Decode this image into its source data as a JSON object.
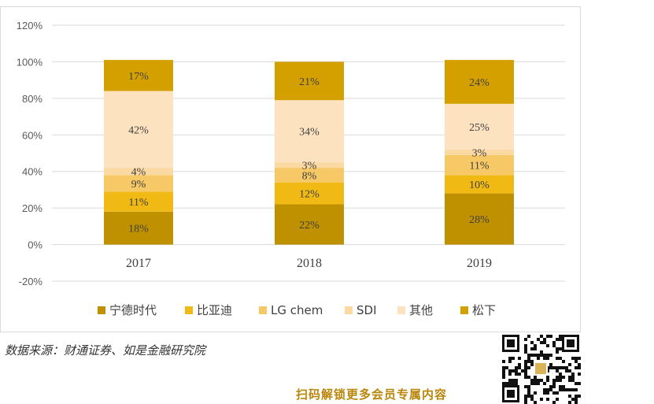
{
  "chart_data": {
    "type": "bar",
    "stacked": true,
    "title": "",
    "xlabel": "",
    "ylabel": "",
    "categories": [
      "2017",
      "2018",
      "2019"
    ],
    "ylim": [
      -0.2,
      1.2
    ],
    "yticks": [
      "120%",
      "100%",
      "80%",
      "60%",
      "40%",
      "20%",
      "0%",
      "-20%"
    ],
    "ytick_values": [
      1.2,
      1.0,
      0.8,
      0.6,
      0.4,
      0.2,
      0.0,
      -0.2
    ],
    "grid": true,
    "legend_position": "bottom",
    "series": [
      {
        "name": "宁德时代",
        "values": [
          0.18,
          0.22,
          0.28
        ],
        "labels": [
          "18%",
          "22%",
          "28%"
        ],
        "color": "#bf9000"
      },
      {
        "name": "比亚迪",
        "values": [
          0.11,
          0.12,
          0.1
        ],
        "labels": [
          "11%",
          "12%",
          "10%"
        ],
        "color": "#f0b913"
      },
      {
        "name": "LG chem",
        "values": [
          0.09,
          0.08,
          0.11
        ],
        "labels": [
          "9%",
          "8%",
          "11%"
        ],
        "color": "#f7c866"
      },
      {
        "name": "SDI",
        "values": [
          0.04,
          0.03,
          0.03
        ],
        "labels": [
          "4%",
          "3%",
          "3%"
        ],
        "color": "#fbd9a2"
      },
      {
        "name": "其他",
        "values": [
          0.42,
          0.34,
          0.25
        ],
        "labels": [
          "42%",
          "34%",
          "25%"
        ],
        "color": "#fde2c0"
      },
      {
        "name": "松下",
        "values": [
          0.17,
          0.21,
          0.24
        ],
        "labels": [
          "17%",
          "21%",
          "24%"
        ],
        "color": "#d4a000"
      }
    ]
  },
  "source": "数据来源：财通证券、如是金融研究院",
  "promo": "扫码解锁更多会员专属内容",
  "colors": {
    "grid": "#d9d9d9",
    "label": "#404040",
    "promo": "#b8860b"
  }
}
